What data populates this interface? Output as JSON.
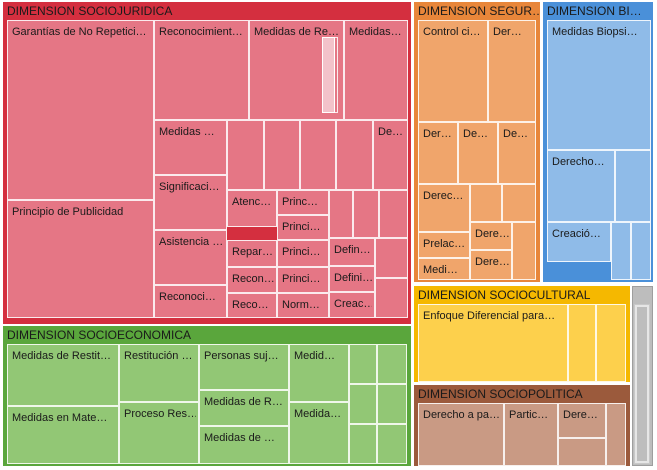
{
  "chart_data": {
    "type": "treemap",
    "groups": [
      {
        "name": "DIMENSION SOCIOJURIDICA",
        "header_color": "#d42f3f",
        "fill": "#e57685",
        "header_text_color": "#1a1a1a",
        "leaves": [
          "Garantías de No Repetici…",
          "Principio de Publicidad",
          "Reconocimient…",
          "Medidas de Re…",
          "Medidas…",
          "Medidas …",
          "Significaci…",
          "Asistencia …",
          "Reconoci…",
          "De…",
          "Atenc…",
          "Princ…",
          "Princi…",
          "Repar…",
          "Princi…",
          "Defin…",
          "Recon…",
          "Princi…",
          "Defini…",
          "Reco…",
          "Norm…",
          "Creac…",
          "",
          "",
          "",
          "",
          "",
          "",
          "",
          "",
          "",
          ""
        ]
      },
      {
        "name": "DIMENSION SEGUR…",
        "header_color": "#e8863a",
        "fill": "#f0a56b",
        "header_text_color": "#1a1a1a",
        "leaves": [
          "Control ci…",
          "Der…",
          "Der…",
          "De…",
          "De…",
          "Derec…",
          "Prelac…",
          "Dere…",
          "Medi…",
          "Dere…",
          "",
          "",
          ""
        ]
      },
      {
        "name": "DIMENSION BI…",
        "header_color": "#4a90d9",
        "fill": "#8fbbe8",
        "header_text_color": "#1a1a1a",
        "leaves": [
          "Medidas Biopsi…",
          "Derecho…",
          "Creació…",
          "",
          "",
          ""
        ]
      },
      {
        "name": "DIMENSION SOCIOCULTURAL",
        "header_color": "#f5b800",
        "fill": "#fdd04c",
        "header_text_color": "#1a1a1a",
        "leaves": [
          "Enfoque Diferencial para…",
          "",
          ""
        ]
      },
      {
        "name": "DIMENSION SOCIOECONOMICA",
        "header_color": "#5aa63c",
        "fill": "#92c775",
        "header_text_color": "#1a1a1a",
        "leaves": [
          "Medidas de Restit…",
          "Medidas en Mate…",
          "Restitución …",
          "Proceso Res…",
          "Personas suj…",
          "Medidas de R…",
          "Medidas de …",
          "Medid…",
          "Medida…",
          "",
          "",
          "",
          "",
          "",
          ""
        ]
      },
      {
        "name": "DIMENSION SOCIOPOLITICA",
        "header_color": "#9b5a3c",
        "fill": "#c99a84",
        "header_text_color": "#1a1a1a",
        "leaves": [
          "Derecho a pa…",
          "Partic…",
          "Dere…",
          "",
          ""
        ]
      }
    ],
    "other_group": {
      "name": "",
      "fill": "#bdbdbd"
    }
  }
}
